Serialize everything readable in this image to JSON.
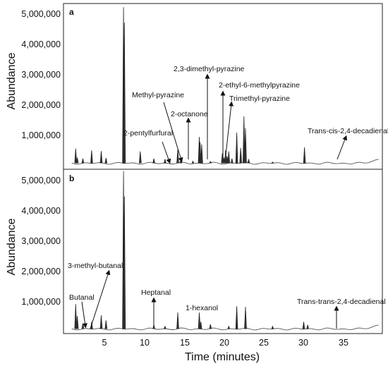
{
  "chart_data": [
    {
      "type": "line",
      "panel_label": "a",
      "xlabel": "Time (minutes)",
      "ylabel": "Abundance",
      "ylim": [
        0,
        5400000
      ],
      "xlim": [
        0,
        39.5
      ],
      "yticks": [
        1000000,
        2000000,
        3000000,
        4000000,
        5000000
      ],
      "ytick_labels": [
        "1,000,000",
        "2,000,000",
        "3,000,000",
        "4,000,000",
        "5,000,000"
      ],
      "series": [
        {
          "x": [
            1.4,
            1.6,
            2.3,
            3.4,
            4.6,
            5.2,
            7.4,
            7.5,
            9.5,
            11.2,
            12.6,
            14.2,
            14.6,
            16.1,
            16.9,
            17.0,
            17.2,
            18.3,
            19.8,
            20.0,
            20.2,
            20.4,
            20.6,
            21.0,
            21.6,
            22.1,
            22.5,
            22.7,
            23.1,
            26.1,
            30.1
          ],
          "values": [
            560000,
            250000,
            220000,
            500000,
            470000,
            240000,
            5350000,
            4820000,
            460000,
            220000,
            200000,
            520000,
            230000,
            130000,
            950000,
            780000,
            700000,
            120000,
            400000,
            250000,
            500000,
            300000,
            460000,
            220000,
            1100000,
            580000,
            1650000,
            1250000,
            200000,
            100000,
            600000
          ]
        }
      ],
      "annotations": [
        "2-pentylfurfural",
        "Methyl-pyrazine",
        "2-octanone",
        "2,3-dimethyl-pyrazine",
        "2-ethyl-6-methylpyrazine",
        "Trimethyl-pyrazine",
        "Trans-cis-2,4-decadienal"
      ]
    },
    {
      "type": "line",
      "panel_label": "b",
      "xlabel": "Time (minutes)",
      "ylabel": "Abundance",
      "ylim": [
        0,
        5400000
      ],
      "xlim": [
        0,
        39.5
      ],
      "xticks": [
        5,
        10,
        15,
        20,
        25,
        30,
        35
      ],
      "xtick_labels": [
        "5",
        "10",
        "15",
        "20",
        "25",
        "30",
        "35"
      ],
      "yticks": [
        1000000,
        2000000,
        3000000,
        4000000,
        5000000
      ],
      "ytick_labels": [
        "1,000,000",
        "2,000,000",
        "3,000,000",
        "4,000,000",
        "5,000,000"
      ],
      "series": [
        {
          "x": [
            1.4,
            1.6,
            2.3,
            3.4,
            4.6,
            5.2,
            7.4,
            7.5,
            11.2,
            12.6,
            14.2,
            16.9,
            17.1,
            18.3,
            20.6,
            21.6,
            22.7,
            26.1,
            30.0,
            30.5
          ],
          "values": [
            900000,
            500000,
            250000,
            300000,
            520000,
            350000,
            5400000,
            4550000,
            200000,
            150000,
            620000,
            620000,
            300000,
            220000,
            150000,
            830000,
            810000,
            150000,
            300000,
            200000
          ]
        }
      ],
      "annotations": [
        "3-methyl-butanal",
        "Butanal",
        "Heptanal",
        "1-hexanol",
        "Trans-trans-2,4-decadienal"
      ]
    }
  ]
}
